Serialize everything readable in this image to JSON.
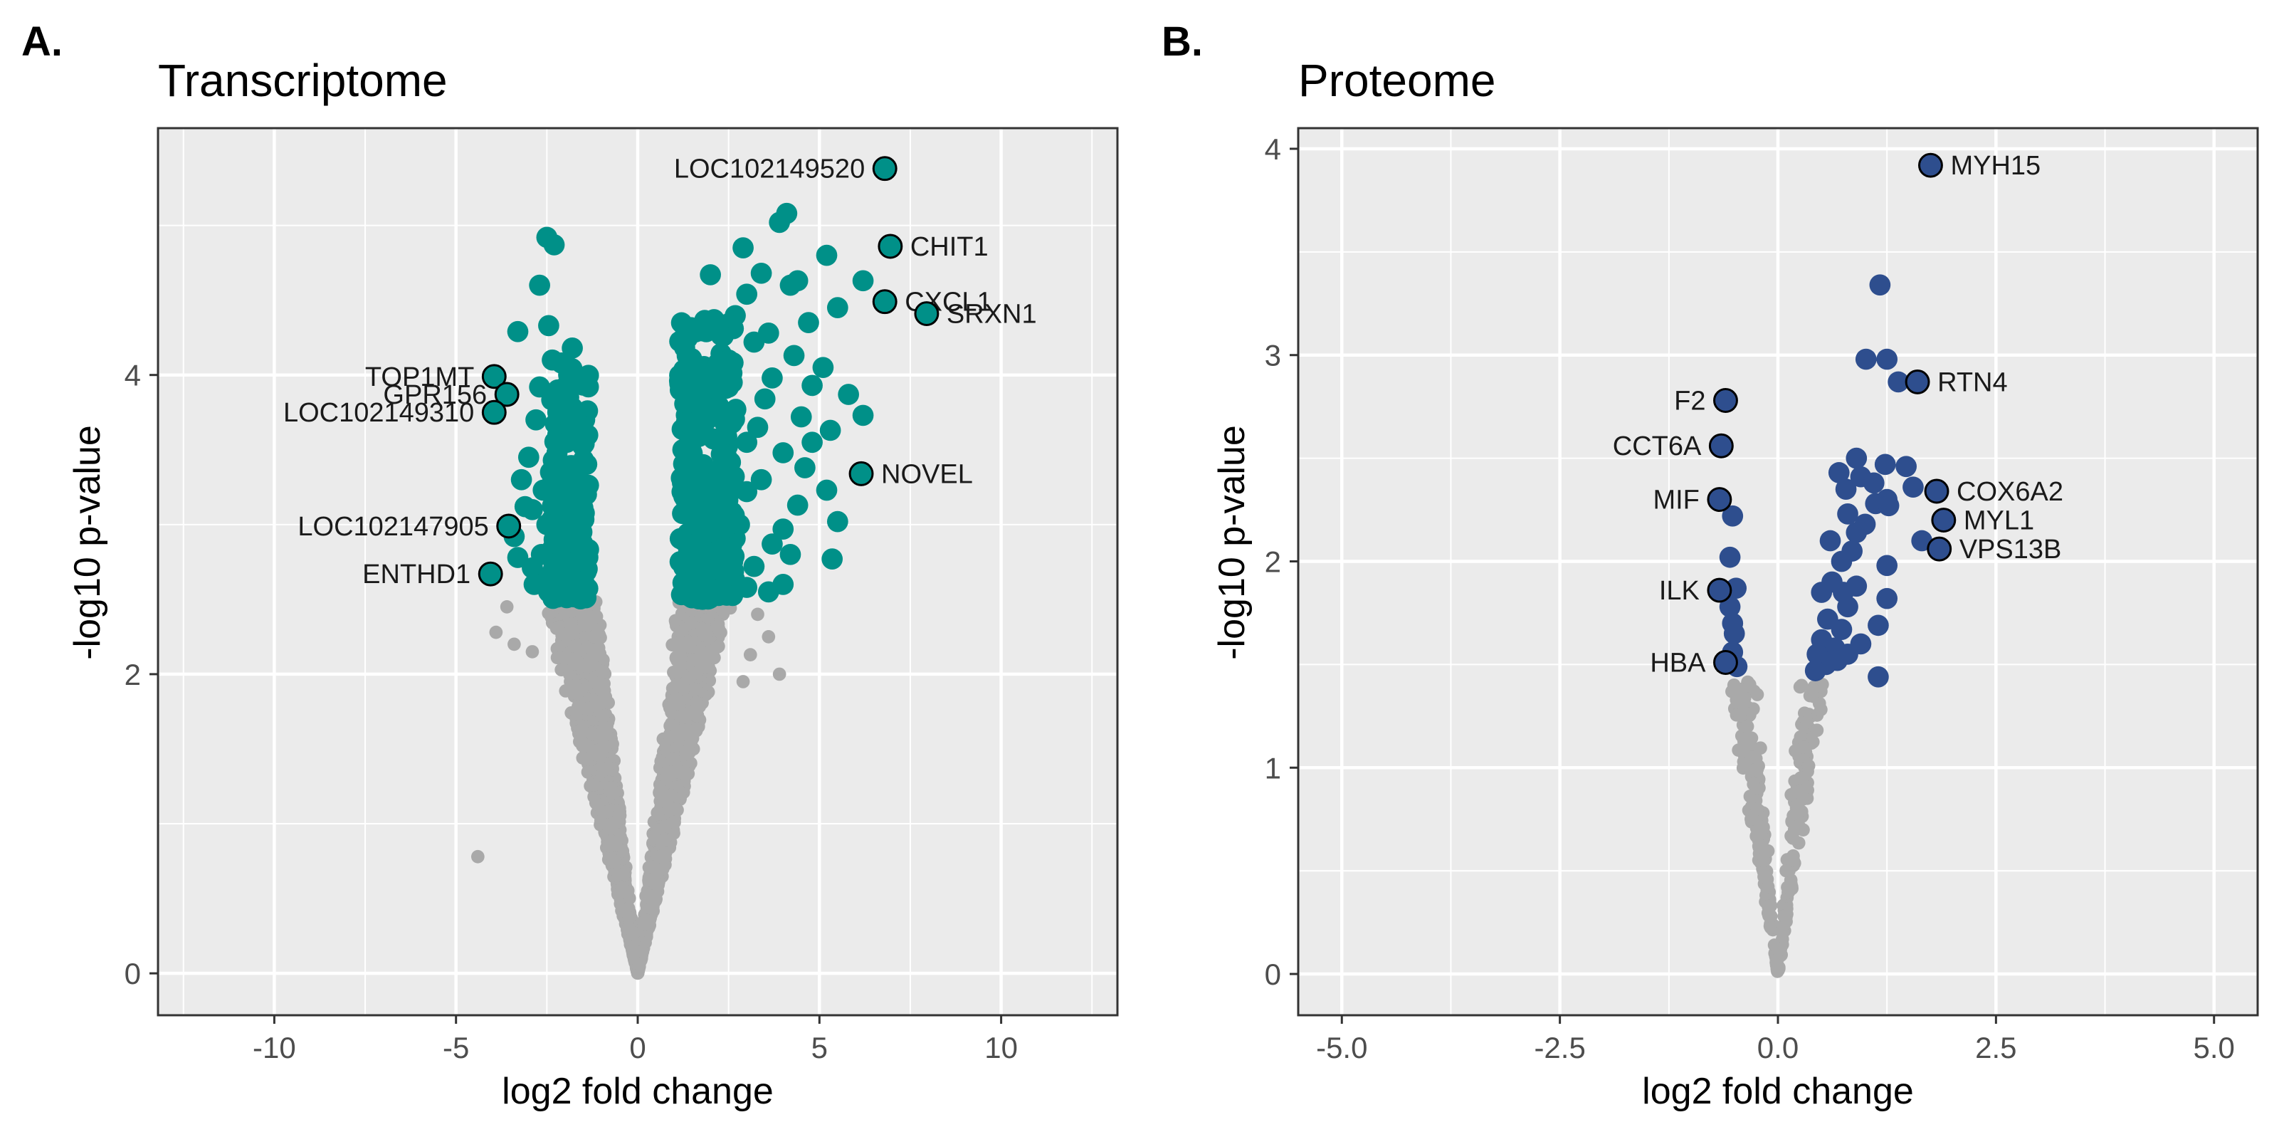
{
  "chart_data": [
    {
      "panel": "A.",
      "type": "scatter",
      "subtype": "volcano",
      "title": "Transcriptome",
      "xlabel": "log2 fold change",
      "ylabel": "-log10 p-value",
      "xlim": [
        -13.2,
        13.2
      ],
      "ylim": [
        -0.28,
        5.65
      ],
      "xticks": [
        -10,
        -5,
        0,
        5,
        10
      ],
      "xtick_labels": [
        "-10",
        "-5",
        "0",
        "5",
        "10"
      ],
      "yticks": [
        0,
        2,
        4
      ],
      "ytick_labels": [
        "0",
        "2",
        "4"
      ],
      "grid": true,
      "significance_threshold": 2.5,
      "colors": {
        "significant": "#009088",
        "nonsignificant": "#a9a9a9",
        "background": "#ebebeb",
        "grid": "#ffffff"
      },
      "highlighted": [
        {
          "gene": "LOC102149520",
          "x": 6.8,
          "y": 5.38,
          "label_side": "left"
        },
        {
          "gene": "CHIT1",
          "x": 6.95,
          "y": 4.86,
          "label_side": "right"
        },
        {
          "gene": "CXCL1",
          "x": 6.8,
          "y": 4.49,
          "label_side": "right"
        },
        {
          "gene": "SRXN1",
          "x": 7.95,
          "y": 4.41,
          "label_side": "right"
        },
        {
          "gene": "NOVEL",
          "x": 6.15,
          "y": 3.34,
          "label_side": "right"
        },
        {
          "gene": "TOP1MT",
          "x": -3.95,
          "y": 3.99,
          "label_side": "left"
        },
        {
          "gene": "GPR156",
          "x": -3.6,
          "y": 3.87,
          "label_side": "left"
        },
        {
          "gene": "LOC102149310",
          "x": -3.95,
          "y": 3.75,
          "label_side": "left"
        },
        {
          "gene": "LOC102147905",
          "x": -3.55,
          "y": 2.99,
          "label_side": "left"
        },
        {
          "gene": "ENTHD1",
          "x": -4.05,
          "y": 2.67,
          "label_side": "left"
        }
      ],
      "significant_points": [
        [
          -2.5,
          4.92
        ],
        [
          -2.3,
          4.87
        ],
        [
          -2.7,
          4.6
        ],
        [
          -2.45,
          4.33
        ],
        [
          -3.3,
          4.29
        ],
        [
          -1.8,
          4.18
        ],
        [
          -2.35,
          4.1
        ],
        [
          -2.1,
          4.08
        ],
        [
          -1.9,
          4.0
        ],
        [
          -2.7,
          3.92
        ],
        [
          -2.2,
          3.9
        ],
        [
          -2.8,
          3.7
        ],
        [
          -2.2,
          3.6
        ],
        [
          -3.0,
          3.45
        ],
        [
          -2.1,
          3.4
        ],
        [
          -3.2,
          3.3
        ],
        [
          -2.6,
          3.23
        ],
        [
          -3.1,
          3.12
        ],
        [
          -2.9,
          3.1
        ],
        [
          -2.5,
          3.0
        ],
        [
          -3.4,
          2.92
        ],
        [
          -2.65,
          2.8
        ],
        [
          -3.3,
          2.78
        ],
        [
          -2.9,
          2.71
        ],
        [
          -2.5,
          2.65
        ],
        [
          -2.85,
          2.6
        ],
        [
          -2.45,
          2.55
        ],
        [
          -2.05,
          2.58
        ],
        [
          -1.8,
          2.53
        ],
        [
          -2.2,
          3.75
        ],
        [
          -1.95,
          3.55
        ],
        [
          -1.75,
          3.3
        ],
        [
          -2.0,
          3.15
        ],
        [
          -1.6,
          2.95
        ],
        [
          -1.7,
          2.75
        ],
        [
          -2.3,
          2.9
        ],
        [
          -1.9,
          3.85
        ],
        [
          -2.0,
          2.65
        ],
        [
          -1.75,
          3.65
        ],
        [
          -2.4,
          3.35
        ],
        [
          4.1,
          5.08
        ],
        [
          3.9,
          5.02
        ],
        [
          2.9,
          4.85
        ],
        [
          5.2,
          4.8
        ],
        [
          3.4,
          4.68
        ],
        [
          2.0,
          4.67
        ],
        [
          4.4,
          4.63
        ],
        [
          4.2,
          4.6
        ],
        [
          6.2,
          4.63
        ],
        [
          3.0,
          4.54
        ],
        [
          5.5,
          4.45
        ],
        [
          4.7,
          4.35
        ],
        [
          3.6,
          4.28
        ],
        [
          2.1,
          4.37
        ],
        [
          3.2,
          4.22
        ],
        [
          4.3,
          4.13
        ],
        [
          5.1,
          4.05
        ],
        [
          2.5,
          4.1
        ],
        [
          3.7,
          3.98
        ],
        [
          4.8,
          3.93
        ],
        [
          5.8,
          3.87
        ],
        [
          6.2,
          3.73
        ],
        [
          3.5,
          3.84
        ],
        [
          4.5,
          3.72
        ],
        [
          2.7,
          3.77
        ],
        [
          5.3,
          3.63
        ],
        [
          3.0,
          3.55
        ],
        [
          4.0,
          3.48
        ],
        [
          4.6,
          3.38
        ],
        [
          3.4,
          3.3
        ],
        [
          2.3,
          3.47
        ],
        [
          5.2,
          3.23
        ],
        [
          4.4,
          3.13
        ],
        [
          3.0,
          3.22
        ],
        [
          5.5,
          3.02
        ],
        [
          4.0,
          2.97
        ],
        [
          3.7,
          2.87
        ],
        [
          4.2,
          2.8
        ],
        [
          5.35,
          2.77
        ],
        [
          3.2,
          2.72
        ],
        [
          2.5,
          2.66
        ],
        [
          4.0,
          2.6
        ],
        [
          1.5,
          2.58
        ],
        [
          2.0,
          2.56
        ],
        [
          3.0,
          2.58
        ],
        [
          3.6,
          2.55
        ],
        [
          2.6,
          3.95
        ],
        [
          1.9,
          3.7
        ],
        [
          2.2,
          3.2
        ],
        [
          2.8,
          3.0
        ],
        [
          1.6,
          2.85
        ],
        [
          1.8,
          3.4
        ],
        [
          3.3,
          3.65
        ],
        [
          4.8,
          3.55
        ],
        [
          2.4,
          2.85
        ]
      ],
      "dense_regions": [
        {
          "x_edge": [
            -1.35,
            -2.4
          ],
          "y_range": [
            2.5,
            4.05
          ],
          "n": 150
        },
        {
          "x_edge": [
            1.15,
            2.7
          ],
          "y_range": [
            2.5,
            4.4
          ],
          "n": 240
        }
      ],
      "nonsignificant_points": [
        [
          -4.4,
          0.78
        ],
        [
          -3.6,
          2.45
        ],
        [
          -3.9,
          2.28
        ],
        [
          -3.4,
          2.2
        ],
        [
          3.3,
          2.4
        ],
        [
          3.6,
          2.25
        ],
        [
          3.1,
          2.13
        ],
        [
          3.9,
          2.0
        ],
        [
          2.9,
          1.95
        ],
        [
          -2.9,
          2.15
        ]
      ]
    },
    {
      "panel": "B.",
      "type": "scatter",
      "subtype": "volcano",
      "title": "Proteome",
      "xlabel": "log2 fold change",
      "ylabel": "-log10 p-value",
      "xlim": [
        -5.5,
        5.5
      ],
      "ylim": [
        -0.2,
        4.1
      ],
      "xticks": [
        -5.0,
        -2.5,
        0.0,
        2.5,
        5.0
      ],
      "xtick_labels": [
        "-5.0",
        "-2.5",
        "0.0",
        "2.5",
        "5.0"
      ],
      "yticks": [
        0,
        1,
        2,
        3,
        4
      ],
      "ytick_labels": [
        "0",
        "1",
        "2",
        "3",
        "4"
      ],
      "grid": true,
      "significance_threshold": 1.42,
      "colors": {
        "significant": "#2e4e8e",
        "nonsignificant": "#a9a9a9",
        "background": "#ebebeb",
        "grid": "#ffffff"
      },
      "highlighted": [
        {
          "gene": "MYH15",
          "x": 1.75,
          "y": 3.92,
          "label_side": "right"
        },
        {
          "gene": "RTN4",
          "x": 1.6,
          "y": 2.87,
          "label_side": "right"
        },
        {
          "gene": "COX6A2",
          "x": 1.82,
          "y": 2.34,
          "label_side": "right"
        },
        {
          "gene": "MYL1",
          "x": 1.9,
          "y": 2.2,
          "label_side": "right"
        },
        {
          "gene": "VPS13B",
          "x": 1.85,
          "y": 2.06,
          "label_side": "right"
        },
        {
          "gene": "F2",
          "x": -0.6,
          "y": 2.78,
          "label_side": "left"
        },
        {
          "gene": "CCT6A",
          "x": -0.65,
          "y": 2.56,
          "label_side": "left"
        },
        {
          "gene": "MIF",
          "x": -0.67,
          "y": 2.3,
          "label_side": "left"
        },
        {
          "gene": "ILK",
          "x": -0.67,
          "y": 1.86,
          "label_side": "left"
        },
        {
          "gene": "HBA",
          "x": -0.6,
          "y": 1.51,
          "label_side": "left"
        }
      ],
      "significant_points": [
        [
          1.17,
          3.34
        ],
        [
          1.01,
          2.98
        ],
        [
          1.25,
          2.98
        ],
        [
          1.38,
          2.87
        ],
        [
          0.9,
          2.5
        ],
        [
          1.23,
          2.47
        ],
        [
          1.47,
          2.46
        ],
        [
          0.7,
          2.43
        ],
        [
          0.95,
          2.41
        ],
        [
          1.1,
          2.38
        ],
        [
          0.78,
          2.35
        ],
        [
          1.55,
          2.36
        ],
        [
          1.25,
          2.3
        ],
        [
          1.12,
          2.28
        ],
        [
          0.8,
          2.23
        ],
        [
          1.27,
          2.27
        ],
        [
          0.9,
          2.14
        ],
        [
          1.0,
          2.18
        ],
        [
          0.6,
          2.1
        ],
        [
          1.65,
          2.1
        ],
        [
          0.85,
          2.05
        ],
        [
          0.73,
          2.0
        ],
        [
          1.25,
          1.98
        ],
        [
          0.62,
          1.9
        ],
        [
          0.9,
          1.88
        ],
        [
          0.75,
          1.85
        ],
        [
          0.5,
          1.85
        ],
        [
          1.25,
          1.82
        ],
        [
          0.8,
          1.78
        ],
        [
          0.57,
          1.72
        ],
        [
          0.73,
          1.67
        ],
        [
          1.15,
          1.69
        ],
        [
          0.95,
          1.6
        ],
        [
          0.5,
          1.62
        ],
        [
          0.65,
          1.58
        ],
        [
          0.45,
          1.55
        ],
        [
          0.8,
          1.55
        ],
        [
          0.55,
          1.5
        ],
        [
          0.68,
          1.52
        ],
        [
          0.43,
          1.47
        ],
        [
          1.15,
          1.44
        ],
        [
          -0.52,
          2.22
        ],
        [
          -0.55,
          2.02
        ],
        [
          -0.48,
          1.87
        ],
        [
          -0.55,
          1.78
        ],
        [
          -0.52,
          1.7
        ],
        [
          -0.5,
          1.65
        ],
        [
          -0.47,
          1.49
        ],
        [
          -0.52,
          1.56
        ]
      ],
      "nonsignificant_points": [
        [
          -0.42,
          1.38
        ],
        [
          -0.35,
          1.2
        ],
        [
          -0.3,
          1.05
        ],
        [
          -0.28,
          0.92
        ],
        [
          -0.24,
          0.8
        ],
        [
          -0.2,
          0.68
        ],
        [
          -0.16,
          0.55
        ],
        [
          -0.12,
          0.42
        ],
        [
          -0.08,
          0.28
        ],
        [
          -0.04,
          0.14
        ],
        [
          0.4,
          1.38
        ],
        [
          0.33,
          1.22
        ],
        [
          0.3,
          1.1
        ],
        [
          0.26,
          0.95
        ],
        [
          0.22,
          0.82
        ],
        [
          0.19,
          0.7
        ],
        [
          0.15,
          0.56
        ],
        [
          0.11,
          0.42
        ],
        [
          0.07,
          0.28
        ],
        [
          0.03,
          0.12
        ]
      ]
    }
  ]
}
